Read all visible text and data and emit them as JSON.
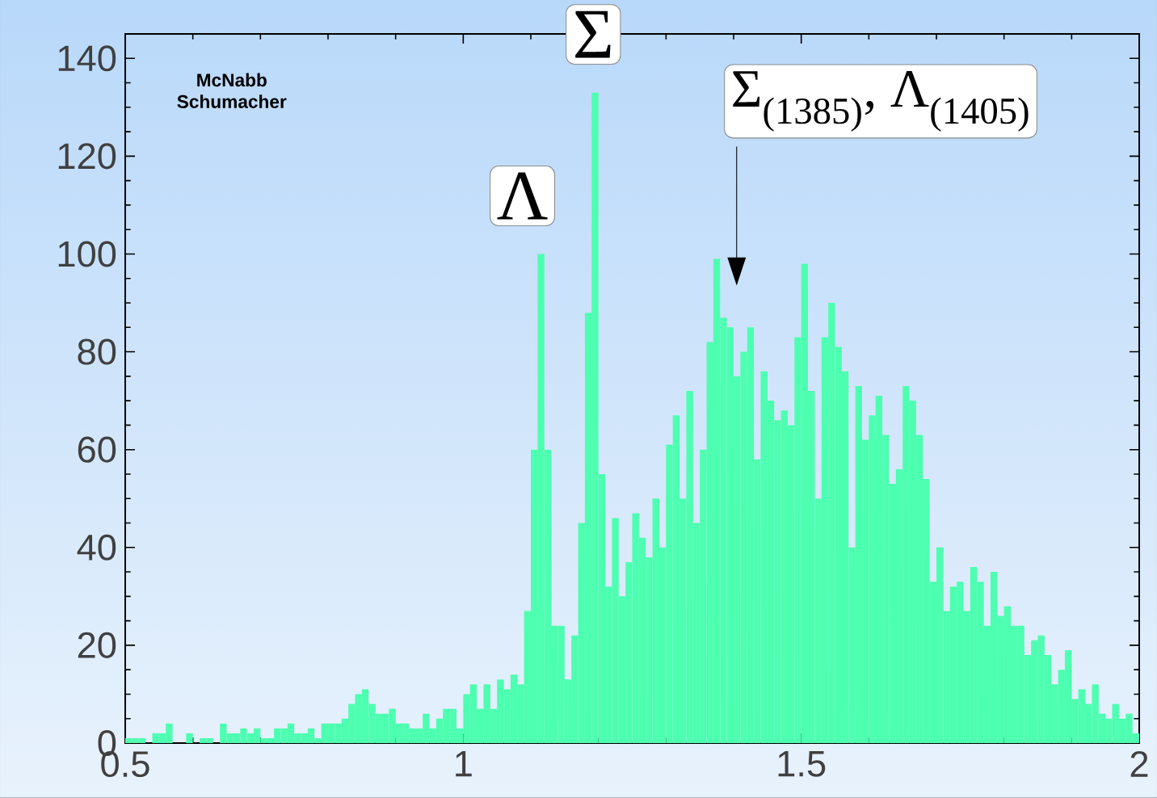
{
  "chart_data": {
    "type": "histogram",
    "bins": [
      0.5,
      0.51,
      0.52,
      0.53,
      0.54,
      0.55,
      0.56,
      0.57,
      0.58,
      0.59,
      0.6,
      0.61,
      0.62,
      0.63,
      0.64,
      0.65,
      0.66,
      0.67,
      0.68,
      0.69,
      0.7,
      0.71,
      0.72,
      0.73,
      0.74,
      0.75,
      0.76,
      0.77,
      0.78,
      0.79,
      0.8,
      0.81,
      0.82,
      0.83,
      0.84,
      0.85,
      0.86,
      0.87,
      0.88,
      0.89,
      0.9,
      0.91,
      0.92,
      0.93,
      0.94,
      0.95,
      0.96,
      0.97,
      0.98,
      0.99,
      1.0,
      1.01,
      1.02,
      1.03,
      1.04,
      1.05,
      1.06,
      1.07,
      1.08,
      1.09,
      1.1,
      1.11,
      1.12,
      1.13,
      1.14,
      1.15,
      1.16,
      1.17,
      1.18,
      1.19,
      1.2,
      1.21,
      1.22,
      1.23,
      1.24,
      1.25,
      1.26,
      1.27,
      1.28,
      1.29,
      1.3,
      1.31,
      1.32,
      1.33,
      1.34,
      1.35,
      1.36,
      1.37,
      1.38,
      1.39,
      1.4,
      1.41,
      1.42,
      1.43,
      1.44,
      1.45,
      1.46,
      1.47,
      1.48,
      1.49,
      1.5,
      1.51,
      1.52,
      1.53,
      1.54,
      1.55,
      1.56,
      1.57,
      1.58,
      1.59,
      1.6,
      1.61,
      1.62,
      1.63,
      1.64,
      1.65,
      1.66,
      1.67,
      1.68,
      1.69,
      1.7,
      1.71,
      1.72,
      1.73,
      1.74,
      1.75,
      1.76,
      1.77,
      1.78,
      1.79,
      1.8,
      1.81,
      1.82,
      1.83,
      1.84,
      1.85,
      1.86,
      1.87,
      1.88,
      1.89,
      1.9,
      1.91,
      1.92,
      1.93,
      1.94,
      1.95,
      1.96,
      1.97,
      1.98,
      1.99,
      2.0
    ],
    "values": [
      1,
      1,
      1,
      0,
      2,
      2,
      4,
      0,
      0,
      2,
      0,
      1,
      1,
      0,
      4,
      2,
      2,
      3,
      2,
      3,
      1,
      1,
      3,
      3,
      4,
      2,
      2,
      3,
      1,
      4,
      4,
      4,
      5,
      8,
      10,
      11,
      8,
      6,
      6,
      7,
      4,
      4,
      3,
      3,
      6,
      3,
      5,
      7,
      7,
      3,
      10,
      12,
      7,
      12,
      7,
      13,
      11,
      14,
      12,
      27,
      60,
      100,
      60,
      24,
      24,
      13,
      22,
      45,
      88,
      133,
      55,
      32,
      46,
      30,
      37,
      47,
      42,
      38,
      50,
      40,
      61,
      67,
      50,
      72,
      45,
      60,
      82,
      99,
      87,
      85,
      75,
      80,
      85,
      58,
      76,
      70,
      66,
      68,
      65,
      83,
      98,
      72,
      50,
      83,
      90,
      81,
      76,
      40,
      73,
      62,
      67,
      71,
      63,
      53,
      56,
      73,
      70,
      63,
      54,
      33,
      40,
      27,
      32,
      33,
      27,
      36,
      33,
      24,
      35,
      26,
      28,
      24,
      24,
      18,
      21,
      22,
      18,
      12,
      15,
      19,
      9,
      11,
      8,
      12,
      6,
      5,
      8,
      5,
      6,
      2
    ],
    "color": "#4dffb0",
    "xlim": [
      0.5,
      2
    ],
    "ylim": [
      0,
      145
    ],
    "xticks": [
      0.5,
      1,
      1.5,
      2
    ],
    "yticks": [
      0,
      20,
      40,
      60,
      80,
      100,
      120,
      140
    ],
    "annotations": [
      "McNabb Schumacher",
      {
        "text": "Λ",
        "x": 1.115,
        "y": 100
      },
      {
        "text": "Σ",
        "x": 1.19,
        "y": 133
      },
      "Σ$_{(1385)}$, Λ$_{(1405)}$"
    ]
  }
}
